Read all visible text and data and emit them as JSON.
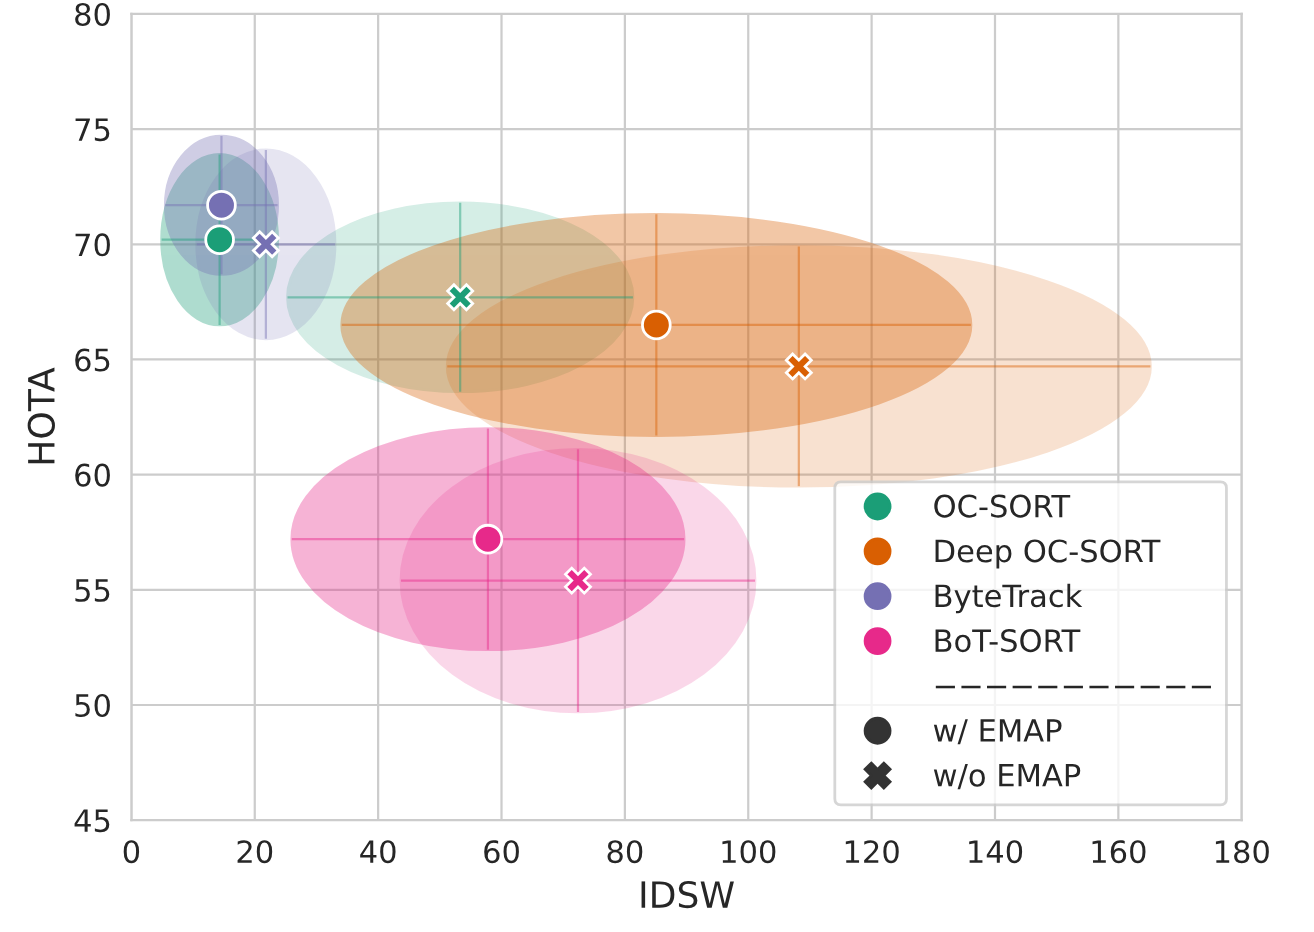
{
  "chart_data": {
    "type": "scatter",
    "xlabel": "IDSW",
    "ylabel": "HOTA",
    "xlim": [
      0,
      180
    ],
    "xticks": [
      0,
      20,
      40,
      60,
      80,
      100,
      120,
      140,
      160,
      180
    ],
    "ylim": [
      45,
      80
    ],
    "yticks": [
      45,
      50,
      55,
      60,
      65,
      70,
      75,
      80
    ],
    "grid": true,
    "legend": "bottom right",
    "series": [
      {
        "name": "OC-SORT",
        "color": "#1b9e77",
        "marker": [
          "circle",
          "cross"
        ],
        "x": [
          14.3,
          53.3
        ],
        "values": [
          70.2,
          67.7
        ],
        "xerrors": [
          9.4,
          28
        ],
        "errors": [
          3.7,
          4.1
        ]
      },
      {
        "name": "Deep OC-SORT",
        "color": "#d95f02",
        "marker": [
          "circle",
          "cross"
        ],
        "x": [
          85.1,
          108.2
        ],
        "values": [
          66.5,
          64.7
        ],
        "xerrors": [
          51,
          57
        ],
        "errors": [
          4.8,
          5.2
        ]
      },
      {
        "name": "ByteTrack",
        "color": "#7570b3",
        "marker": [
          "circle",
          "cross"
        ],
        "x": [
          14.6,
          21.8
        ],
        "values": [
          71.7,
          70.0
        ],
        "xerrors": [
          9.1,
          11.2
        ],
        "errors": [
          3.0,
          4.1
        ]
      },
      {
        "name": "BoT-SORT",
        "color": "#e7298a",
        "marker": [
          "circle",
          "cross"
        ],
        "x": [
          57.8,
          72.4
        ],
        "values": [
          57.2,
          55.4
        ],
        "xerrors": [
          31.8,
          28.7
        ],
        "errors": [
          4.8,
          5.7
        ]
      }
    ],
    "annotations": [
      "−−−−−−−−−−−",
      "w/ EMAP",
      "w/o EMAP"
    ]
  }
}
